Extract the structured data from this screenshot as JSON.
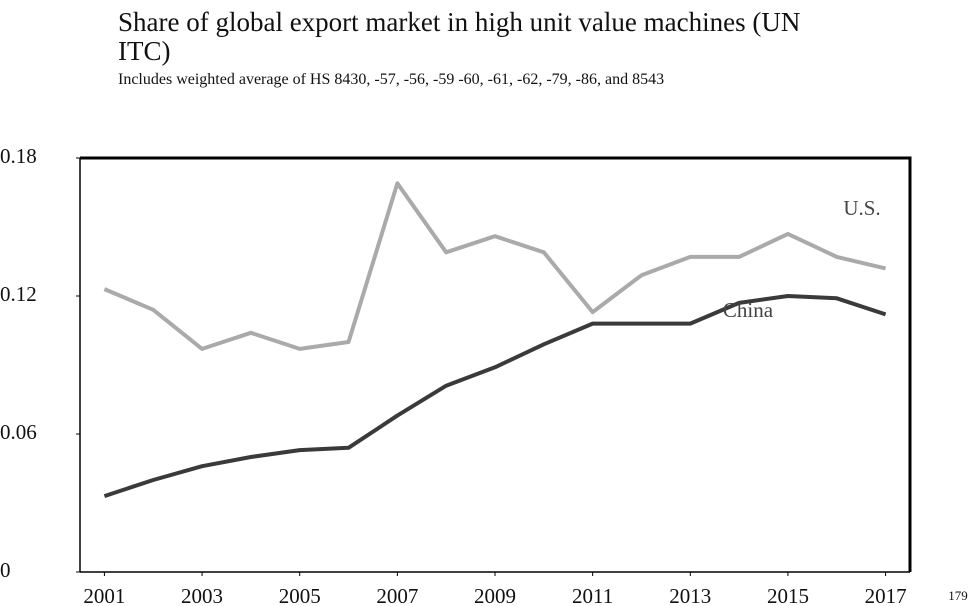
{
  "chart_data": {
    "type": "line",
    "title": "Share of global export market in high unit value machines (UN ITC)",
    "subtitle": "Includes weighted average of HS 8430, -57, -56, -59 -60, -61, -62, -79, -86, and 8543",
    "x": [
      2001,
      2002,
      2003,
      2004,
      2005,
      2006,
      2007,
      2008,
      2009,
      2010,
      2011,
      2012,
      2013,
      2014,
      2015,
      2016,
      2017
    ],
    "series": [
      {
        "name": "U.S.",
        "color": "#aaaaaa",
        "values": [
          0.123,
          0.114,
          0.097,
          0.104,
          0.097,
          0.1,
          0.169,
          0.139,
          0.146,
          0.139,
          0.113,
          0.129,
          0.137,
          0.137,
          0.147,
          0.137,
          0.132
        ]
      },
      {
        "name": "China",
        "color": "#3a3a3a",
        "values": [
          0.033,
          0.04,
          0.046,
          0.05,
          0.053,
          0.054,
          0.068,
          0.081,
          0.089,
          0.099,
          0.108,
          0.108,
          0.108,
          0.117,
          0.12,
          0.119,
          0.112
        ]
      }
    ],
    "xlim": [
      2000.5,
      2017.5
    ],
    "xticks": [
      2001,
      2003,
      2005,
      2007,
      2009,
      2011,
      2013,
      2015,
      2017
    ],
    "ylim": [
      0,
      0.18
    ],
    "yticks": [
      0,
      0.06,
      0.12,
      0.18
    ],
    "grid": false,
    "page_number": "179"
  }
}
